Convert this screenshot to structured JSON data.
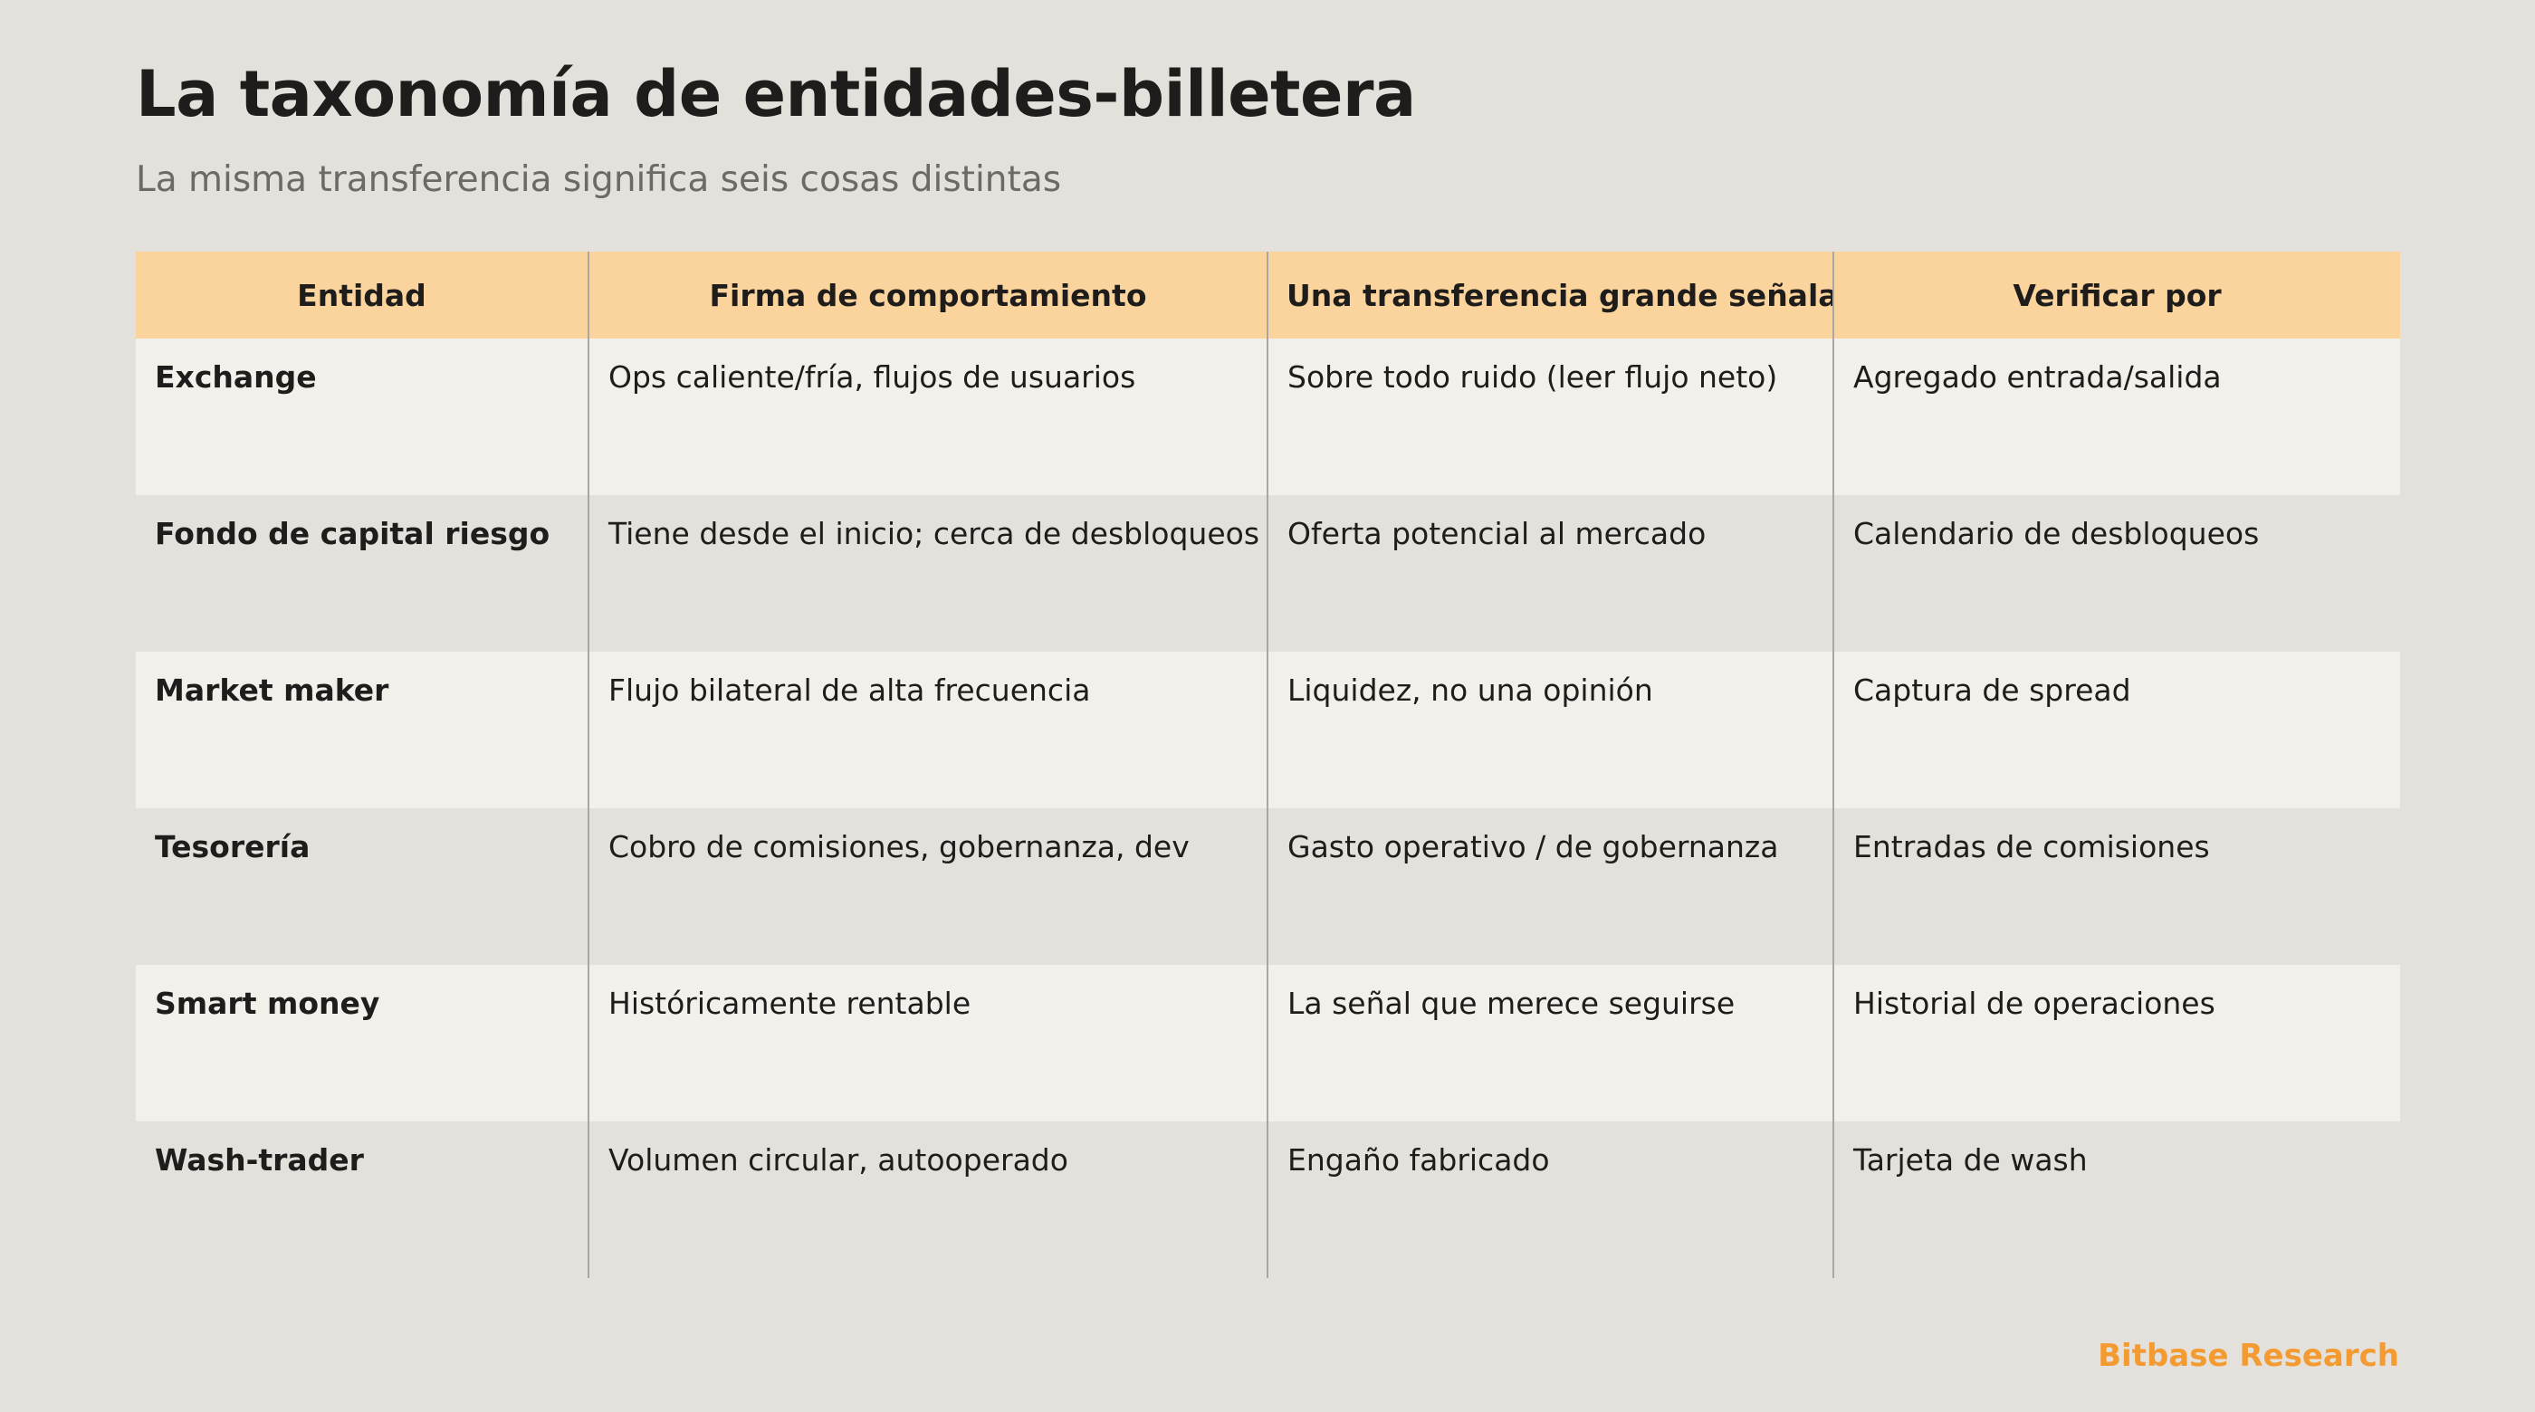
{
  "title": "La taxonomía de entidades-billetera",
  "subtitle": "La misma transferencia significa seis cosas distintas",
  "table": {
    "headers": [
      "Entidad",
      "Firma de comportamiento",
      "Una transferencia grande señala",
      "Verificar por"
    ],
    "rows": [
      [
        "Exchange",
        "Ops caliente/fría, flujos de usuarios",
        "Sobre todo ruido (leer flujo neto)",
        "Agregado entrada/salida"
      ],
      [
        "Fondo de capital riesgo",
        "Tiene desde el inicio; cerca de desbloqueos",
        "Oferta potencial al mercado",
        "Calendario de desbloqueos"
      ],
      [
        "Market maker",
        "Flujo bilateral de alta frecuencia",
        "Liquidez, no una opinión",
        "Captura de spread"
      ],
      [
        "Tesorería",
        "Cobro de comisiones, gobernanza, dev",
        "Gasto operativo / de gobernanza",
        "Entradas de comisiones"
      ],
      [
        "Smart money",
        "Históricamente rentable",
        "La señal que merece seguirse",
        "Historial de operaciones"
      ],
      [
        "Wash-trader",
        "Volumen circular, autooperado",
        "Engaño fabricado",
        "Tarjeta de wash"
      ]
    ]
  },
  "footer": {
    "brand": "Bitbase Research"
  },
  "colors": {
    "background": "#e4e0db",
    "header_row": "#fbd49d",
    "row_light": "#f2f0eb",
    "brand_accent": "#f39a30"
  }
}
